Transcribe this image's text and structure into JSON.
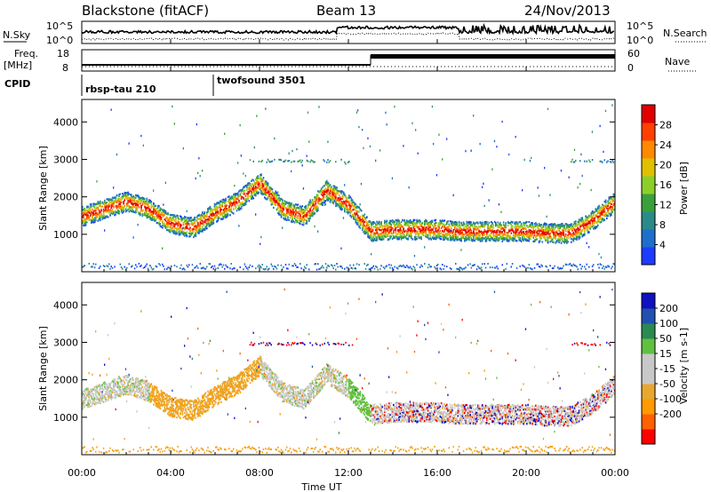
{
  "header": {
    "station": "Blackstone (fitACF)",
    "beam": "Beam 13",
    "date": "24/Nov/2013"
  },
  "noise_panel": {
    "left_label": "N.Sky",
    "right_label": "N.Search",
    "right_ticks": [
      "10^5",
      "10^0"
    ],
    "left_ticks": [
      "10^5",
      "10^0"
    ]
  },
  "freq_panel": {
    "left_label": "Freq.",
    "left_unit": "[MHz]",
    "left_ticks": [
      "18",
      "8"
    ],
    "right_label": "Nave",
    "right_ticks": [
      "60",
      "0"
    ]
  },
  "cpid_panel": {
    "label": "CPID",
    "programs": [
      "rbsp-tau 210",
      "twofsound 3501"
    ]
  },
  "colors": {
    "power_scale": [
      "#1e3cff",
      "#1e6ecc",
      "#2a8a8a",
      "#3aa03a",
      "#8ccf2a",
      "#e0c000",
      "#ff8a00",
      "#ff4000",
      "#e00000"
    ],
    "velocity_scale": [
      "#ff0000",
      "#ff6000",
      "#ff9a00",
      "#e8a830",
      "#c8c8c8",
      "#c8c8c8",
      "#60c040",
      "#2a8a50",
      "#2050b0",
      "#1010c0"
    ]
  },
  "chart_data": [
    {
      "type": "heatmap",
      "title": "",
      "ylabel": "Slant Range [km]",
      "xlabel": "Time UT",
      "x_ticks": [
        "00:00",
        "04:00",
        "08:00",
        "12:00",
        "16:00",
        "20:00",
        "00:00"
      ],
      "y_ticks": [
        1000,
        2000,
        3000,
        4000
      ],
      "ylim": [
        0,
        4600
      ],
      "xlim_hours": [
        0,
        24
      ],
      "colorbar": {
        "label": "Power [dB]",
        "ticks": [
          4,
          8,
          12,
          16,
          20,
          24,
          28
        ],
        "range": [
          0,
          32
        ]
      },
      "backscatter_band_km": {
        "x_hours": [
          0,
          1,
          2,
          3,
          4,
          5,
          6,
          7,
          8,
          9,
          10,
          11,
          12,
          13,
          14,
          15,
          16,
          17,
          18,
          19,
          20,
          21,
          22,
          23,
          24
        ],
        "center_range_km": [
          1500,
          1700,
          1900,
          1700,
          1300,
          1200,
          1600,
          1900,
          2400,
          1700,
          1500,
          2200,
          1800,
          1100,
          1150,
          1150,
          1150,
          1100,
          1100,
          1100,
          1100,
          1050,
          1050,
          1400,
          1900
        ]
      }
    },
    {
      "type": "heatmap",
      "title": "",
      "ylabel": "Slant Range [km]",
      "xlabel": "Time UT",
      "x_ticks": [
        "00:00",
        "04:00",
        "08:00",
        "12:00",
        "16:00",
        "20:00",
        "00:00"
      ],
      "y_ticks": [
        1000,
        2000,
        3000,
        4000
      ],
      "ylim": [
        0,
        4600
      ],
      "xlim_hours": [
        0,
        24
      ],
      "colorbar": {
        "label": "Velocity [m s-1]",
        "ticks": [
          200,
          100,
          50,
          15,
          -15,
          -50,
          -100,
          -200
        ],
        "range": [
          -250,
          250
        ]
      }
    }
  ],
  "x_axis_title": "Time UT",
  "x_ticks": [
    "00:00",
    "04:00",
    "08:00",
    "12:00",
    "16:00",
    "20:00",
    "00:00"
  ]
}
